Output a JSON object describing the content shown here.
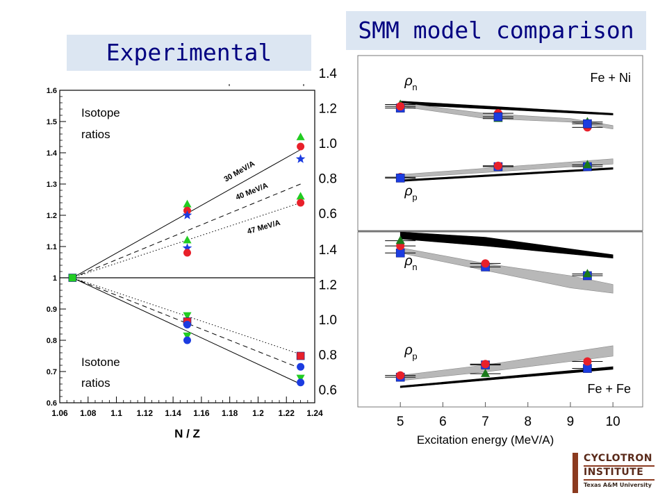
{
  "banners": {
    "experimental": "Experimental",
    "smm": "SMM model comparison"
  },
  "logo": {
    "line1": "CYCLOTRON",
    "line2": "INSTITUTE",
    "line3": "Texas A&M University"
  },
  "colors": {
    "banner_bg": "#dce6f2",
    "banner_text": "#000080",
    "red": "#e8202a",
    "green": "#22cc22",
    "dark_green": "#1a7a1a",
    "blue": "#1c3ce0",
    "band_gray": "#b8b8b8"
  },
  "chart_data": [
    {
      "type": "scatter",
      "panel": "experimental",
      "xlabel": "N / Z",
      "ylabel": "",
      "xlim": [
        1.06,
        1.24
      ],
      "ylim": [
        0.6,
        1.6
      ],
      "xticks": [
        "1.06",
        "1.08",
        "1.1",
        "1.12",
        "1.14",
        "1.16",
        "1.18",
        "1.2",
        "1.22",
        "1.24"
      ],
      "yticks": [
        "0.6",
        "0.7",
        "0.8",
        "0.9",
        "1",
        "1.1",
        "1.2",
        "1.3",
        "1.4",
        "1.5",
        "1.6"
      ],
      "annotations": {
        "isotope": [
          "Isotope",
          "ratios"
        ],
        "isotone": [
          "Isotone",
          "ratios"
        ],
        "line_30": "30 MeV/A",
        "line_40": "40 MeV/A",
        "line_47": "47 MeV/A"
      },
      "fit_lines": [
        {
          "label": "30 MeV/A",
          "style": "solid",
          "x": [
            1.069,
            1.23
          ],
          "y": [
            1.0,
            1.41
          ]
        },
        {
          "label": "40 MeV/A",
          "style": "dashed",
          "x": [
            1.069,
            1.23
          ],
          "y": [
            1.0,
            1.3
          ]
        },
        {
          "label": "47 MeV/A",
          "style": "dotted",
          "x": [
            1.069,
            1.23
          ],
          "y": [
            1.0,
            1.24
          ]
        },
        {
          "label": "30 MeV/A",
          "style": "solid",
          "x": [
            1.069,
            1.23
          ],
          "y": [
            1.0,
            0.66
          ]
        },
        {
          "label": "40 MeV/A",
          "style": "dashed",
          "x": [
            1.069,
            1.23
          ],
          "y": [
            1.0,
            0.71
          ]
        },
        {
          "label": "47 MeV/A",
          "style": "dotted",
          "x": [
            1.069,
            1.23
          ],
          "y": [
            1.0,
            0.755
          ]
        }
      ],
      "reference_line": 1.0,
      "points": [
        {
          "x": 1.069,
          "y": 1.0,
          "shape": "square",
          "color": "green"
        },
        {
          "x": 1.15,
          "y": 1.235,
          "shape": "triangle-up",
          "color": "green"
        },
        {
          "x": 1.15,
          "y": 1.215,
          "shape": "circle",
          "color": "red"
        },
        {
          "x": 1.15,
          "y": 1.2,
          "shape": "star",
          "color": "blue"
        },
        {
          "x": 1.15,
          "y": 1.12,
          "shape": "triangle-up",
          "color": "green"
        },
        {
          "x": 1.15,
          "y": 1.095,
          "shape": "star",
          "color": "blue"
        },
        {
          "x": 1.15,
          "y": 1.08,
          "shape": "circle",
          "color": "red"
        },
        {
          "x": 1.15,
          "y": 0.88,
          "shape": "triangle-down",
          "color": "green"
        },
        {
          "x": 1.15,
          "y": 0.86,
          "shape": "square",
          "color": "red"
        },
        {
          "x": 1.15,
          "y": 0.85,
          "shape": "circle",
          "color": "blue"
        },
        {
          "x": 1.15,
          "y": 0.815,
          "shape": "triangle-down",
          "color": "green"
        },
        {
          "x": 1.15,
          "y": 0.8,
          "shape": "circle",
          "color": "blue"
        },
        {
          "x": 1.23,
          "y": 1.45,
          "shape": "triangle-up",
          "color": "green"
        },
        {
          "x": 1.23,
          "y": 1.42,
          "shape": "circle",
          "color": "red"
        },
        {
          "x": 1.23,
          "y": 1.38,
          "shape": "star",
          "color": "blue"
        },
        {
          "x": 1.23,
          "y": 1.26,
          "shape": "triangle-up",
          "color": "green"
        },
        {
          "x": 1.23,
          "y": 1.24,
          "shape": "circle",
          "color": "red"
        },
        {
          "x": 1.23,
          "y": 0.75,
          "shape": "square",
          "color": "red"
        },
        {
          "x": 1.23,
          "y": 0.715,
          "shape": "circle",
          "color": "blue"
        },
        {
          "x": 1.23,
          "y": 0.68,
          "shape": "triangle-down",
          "color": "green"
        },
        {
          "x": 1.23,
          "y": 0.665,
          "shape": "circle",
          "color": "blue"
        }
      ]
    },
    {
      "type": "scatter",
      "panel": "smm-top",
      "system": "Fe + Ni",
      "xlim": [
        4,
        10.7
      ],
      "ylim": [
        0.5,
        1.5
      ],
      "yticks": [
        "1.4",
        "1.2",
        "1.0",
        "0.8",
        "0.6"
      ],
      "labels": {
        "rho_n": "ρ",
        "rho_n_sub": "n",
        "rho_p": "ρ",
        "rho_p_sub": "p"
      },
      "bands": [
        {
          "color": "black",
          "x": [
            5,
            10
          ],
          "upper": [
            1.24,
            1.17
          ],
          "lower": [
            1.22,
            1.16
          ]
        },
        {
          "color": "gray",
          "x": [
            5,
            7,
            9,
            10
          ],
          "upper": [
            1.23,
            1.17,
            1.14,
            1.1
          ],
          "lower": [
            1.21,
            1.14,
            1.12,
            1.08
          ]
        },
        {
          "color": "gray",
          "x": [
            5,
            10
          ],
          "upper": [
            0.82,
            0.91
          ],
          "lower": [
            0.8,
            0.88
          ]
        },
        {
          "color": "black",
          "x": [
            5,
            10
          ],
          "upper": [
            0.79,
            0.86
          ],
          "lower": [
            0.78,
            0.85
          ]
        }
      ],
      "points": [
        {
          "x": 5,
          "y": 1.2,
          "shape": "square",
          "color": "blue"
        },
        {
          "x": 5,
          "y": 1.22,
          "shape": "triangle-up",
          "color": "dark_green"
        },
        {
          "x": 5,
          "y": 1.21,
          "shape": "circle",
          "color": "red"
        },
        {
          "x": 7.3,
          "y": 1.17,
          "shape": "circle",
          "color": "red"
        },
        {
          "x": 7.3,
          "y": 1.14,
          "shape": "triangle-up",
          "color": "dark_green"
        },
        {
          "x": 7.3,
          "y": 1.15,
          "shape": "square",
          "color": "blue"
        },
        {
          "x": 9.4,
          "y": 1.09,
          "shape": "circle",
          "color": "red"
        },
        {
          "x": 9.4,
          "y": 1.12,
          "shape": "triangle-up",
          "color": "dark_green"
        },
        {
          "x": 9.4,
          "y": 1.11,
          "shape": "square",
          "color": "blue"
        },
        {
          "x": 5,
          "y": 0.805,
          "shape": "circle",
          "color": "red"
        },
        {
          "x": 5,
          "y": 0.8,
          "shape": "square",
          "color": "blue"
        },
        {
          "x": 7.3,
          "y": 0.865,
          "shape": "square",
          "color": "blue"
        },
        {
          "x": 7.3,
          "y": 0.87,
          "shape": "circle",
          "color": "red"
        },
        {
          "x": 9.4,
          "y": 0.865,
          "shape": "square",
          "color": "blue"
        },
        {
          "x": 9.4,
          "y": 0.875,
          "shape": "triangle-up",
          "color": "dark_green"
        }
      ]
    },
    {
      "type": "scatter",
      "panel": "smm-bottom",
      "system": "Fe + Fe",
      "xlabel": "Excitation energy (MeV/A)",
      "xlim": [
        4,
        10.7
      ],
      "ylim": [
        0.5,
        1.5
      ],
      "xticks": [
        "5",
        "6",
        "7",
        "8",
        "9",
        "10"
      ],
      "yticks": [
        "1.4",
        "1.2",
        "1.0",
        "0.8",
        "0.6"
      ],
      "labels": {
        "rho_n": "ρ",
        "rho_n_sub": "n",
        "rho_p": "ρ",
        "rho_p_sub": "p"
      },
      "bands": [
        {
          "color": "black",
          "x": [
            5,
            7,
            10
          ],
          "upper": [
            1.5,
            1.47,
            1.37
          ],
          "lower": [
            1.46,
            1.42,
            1.35
          ]
        },
        {
          "color": "gray",
          "x": [
            5,
            7,
            9,
            10
          ],
          "upper": [
            1.41,
            1.32,
            1.25,
            1.2
          ],
          "lower": [
            1.38,
            1.28,
            1.18,
            1.15
          ]
        },
        {
          "color": "gray",
          "x": [
            5,
            7,
            10
          ],
          "upper": [
            0.68,
            0.74,
            0.85
          ],
          "lower": [
            0.65,
            0.7,
            0.79
          ]
        },
        {
          "color": "black",
          "x": [
            5,
            10
          ],
          "upper": [
            0.62,
            0.73
          ],
          "lower": [
            0.61,
            0.715
          ]
        }
      ],
      "points": [
        {
          "x": 5,
          "y": 1.38,
          "shape": "square",
          "color": "blue"
        },
        {
          "x": 5,
          "y": 1.42,
          "shape": "circle",
          "color": "red"
        },
        {
          "x": 5,
          "y": 1.45,
          "shape": "triangle-up",
          "color": "dark_green"
        },
        {
          "x": 7,
          "y": 1.3,
          "shape": "square",
          "color": "blue"
        },
        {
          "x": 7,
          "y": 1.32,
          "shape": "circle",
          "color": "red"
        },
        {
          "x": 9.4,
          "y": 1.25,
          "shape": "square",
          "color": "blue"
        },
        {
          "x": 9.4,
          "y": 1.26,
          "shape": "triangle-up",
          "color": "dark_green"
        },
        {
          "x": 5,
          "y": 0.67,
          "shape": "square",
          "color": "blue"
        },
        {
          "x": 5,
          "y": 0.68,
          "shape": "circle",
          "color": "red"
        },
        {
          "x": 7,
          "y": 0.74,
          "shape": "square",
          "color": "blue"
        },
        {
          "x": 7,
          "y": 0.745,
          "shape": "circle",
          "color": "red"
        },
        {
          "x": 7,
          "y": 0.69,
          "shape": "triangle-up",
          "color": "dark_green"
        },
        {
          "x": 9.4,
          "y": 0.72,
          "shape": "square",
          "color": "blue"
        },
        {
          "x": 9.4,
          "y": 0.76,
          "shape": "circle",
          "color": "red"
        }
      ]
    }
  ]
}
